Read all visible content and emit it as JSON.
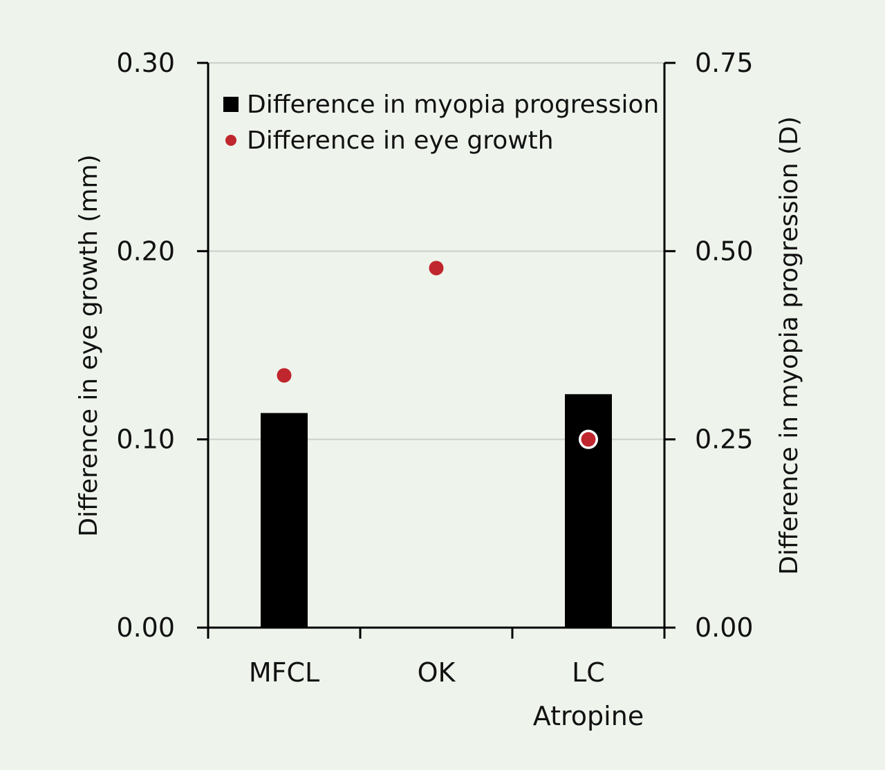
{
  "chart_data": {
    "type": "bar",
    "categories": [
      {
        "lines": [
          "MFCL"
        ]
      },
      {
        "lines": [
          "OK"
        ]
      },
      {
        "lines": [
          "LC",
          "Atropine"
        ]
      }
    ],
    "series": [
      {
        "name": "Difference in myopia progression",
        "kind": "bar",
        "axis": "right",
        "color": "#000000",
        "values": [
          0.285,
          null,
          0.31
        ]
      },
      {
        "name": "Difference in eye growth",
        "kind": "point",
        "axis": "left",
        "color": "#c0262d",
        "values": [
          0.134,
          0.191,
          0.1
        ]
      }
    ],
    "left_axis": {
      "label": "Difference in eye growth (mm)",
      "ylim": [
        0,
        0.3
      ],
      "ticks": [
        "0.00",
        "0.10",
        "0.20",
        "0.30"
      ]
    },
    "right_axis": {
      "label": "Difference in myopia progression (D)",
      "ylim": [
        0,
        0.75
      ],
      "ticks": [
        "0.00",
        "0.25",
        "0.50",
        "0.75"
      ]
    },
    "grid": true,
    "legend_position": "top-left",
    "highlighted_point": {
      "series": "Difference in eye growth",
      "category": "LC Atropine",
      "ring_color": "#ffffff"
    },
    "background": "#eef4ec"
  }
}
